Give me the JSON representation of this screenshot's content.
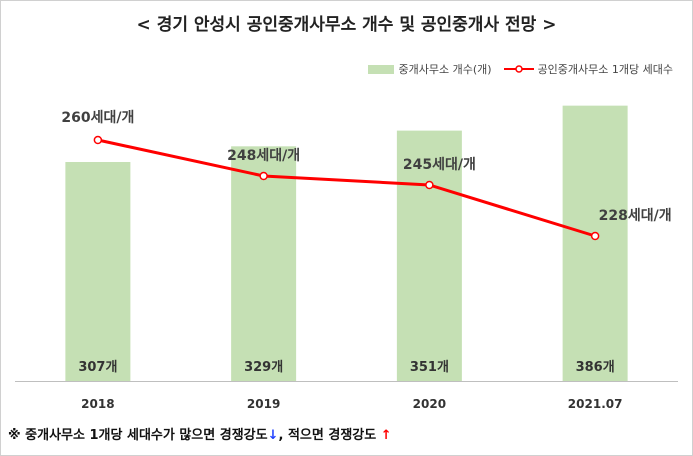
{
  "title": "< 경기 안성시 공인중개사무소 개수 및 공인중개사 전망 >",
  "legend": {
    "bar_label": "중개사무소 개수(개)",
    "line_label": "공인중개사무소 1개당 세대수"
  },
  "note": {
    "prefix": "※ 중개사무소 1개당 세대수가 많으면 경쟁강도",
    "down_arrow": "↓",
    "middle": ", 적으면 경쟁강도 ",
    "up_arrow": "↑"
  },
  "colors": {
    "bar": "#c5e0b4",
    "line": "#ff0000",
    "axis": "#bfbfbf"
  },
  "chart_data": {
    "type": "bar",
    "categories": [
      "2018",
      "2019",
      "2020",
      "2021.07"
    ],
    "series": [
      {
        "name": "중개사무소 개수(개)",
        "type": "bar",
        "values": [
          307,
          329,
          351,
          386
        ],
        "labels": [
          "307개",
          "329개",
          "351개",
          "386개"
        ]
      },
      {
        "name": "공인중개사무소 1개당 세대수",
        "type": "line",
        "values": [
          260,
          248,
          245,
          228
        ],
        "labels": [
          "260세대/개",
          "248세대/개",
          "245세대/개",
          "228세대/개"
        ]
      }
    ],
    "bar_axis_range": [
      0,
      450
    ],
    "line_axis_range": [
      180,
      270
    ],
    "grid": false,
    "legend_position": "top-right"
  }
}
